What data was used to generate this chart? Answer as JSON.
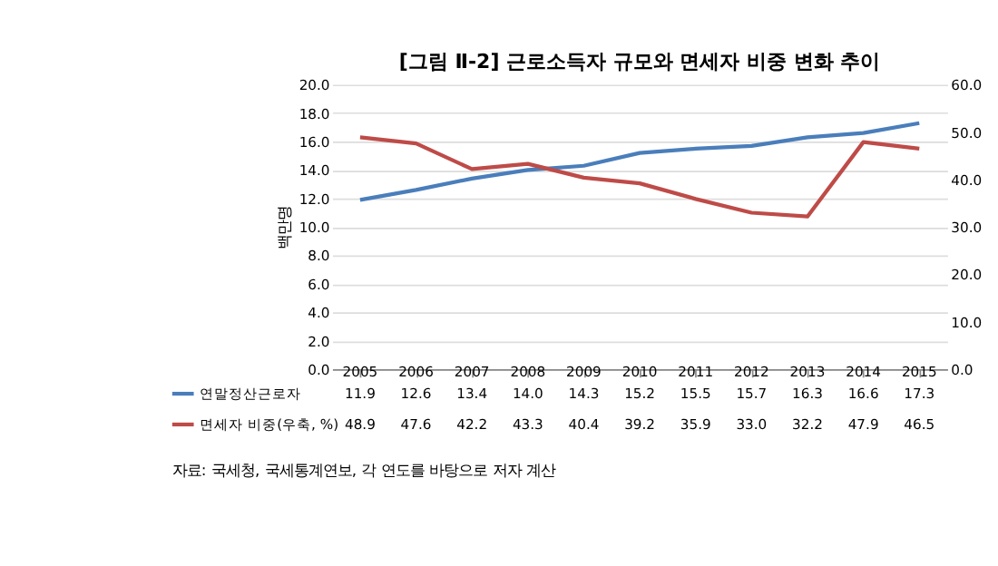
{
  "chart_data": {
    "type": "line",
    "title": "[그림 Ⅱ-2] 근로소득자 규모와 면세자 비중 변화 추이",
    "ylabel": "백만명",
    "categories": [
      "2005",
      "2006",
      "2007",
      "2008",
      "2009",
      "2010",
      "2011",
      "2012",
      "2013",
      "2014",
      "2015"
    ],
    "series": [
      {
        "name": "연말정산근로자",
        "color": "#4a7ebb",
        "values": [
          11.9,
          12.6,
          13.4,
          14.0,
          14.3,
          15.2,
          15.5,
          15.7,
          16.3,
          16.6,
          17.3
        ],
        "value_labels": [
          "11.9",
          "12.6",
          "13.4",
          "14.0",
          "14.3",
          "15.2",
          "15.5",
          "15.7",
          "16.3",
          "16.6",
          "17.3"
        ]
      },
      {
        "name": "면세자 비중(우축, %)",
        "color": "#be4b48",
        "axis": "y2",
        "values": [
          48.9,
          47.6,
          42.2,
          43.3,
          40.4,
          39.2,
          35.9,
          33.0,
          32.2,
          47.9,
          46.5
        ],
        "value_labels": [
          "48.9",
          "47.6",
          "42.2",
          "43.3",
          "40.4",
          "39.2",
          "35.9",
          "33.0",
          "32.2",
          "47.9",
          "46.5"
        ]
      }
    ],
    "ylim": [
      0,
      20
    ],
    "yticks": [
      {
        "value": 0,
        "label": "0.0"
      },
      {
        "value": 2,
        "label": "2.0"
      },
      {
        "value": 4,
        "label": "4.0"
      },
      {
        "value": 6,
        "label": "6.0"
      },
      {
        "value": 8,
        "label": "8.0"
      },
      {
        "value": 10,
        "label": "10.0"
      },
      {
        "value": 12,
        "label": "12.0"
      },
      {
        "value": 14,
        "label": "14.0"
      },
      {
        "value": 16,
        "label": "16.0"
      },
      {
        "value": 18,
        "label": "18.0"
      },
      {
        "value": 20,
        "label": "20.0"
      }
    ],
    "y2lim": [
      0,
      60
    ],
    "y2ticks": [
      {
        "value": 0,
        "label": "0.0"
      },
      {
        "value": 10,
        "label": "10.0"
      },
      {
        "value": 20,
        "label": "20.0"
      },
      {
        "value": 30,
        "label": "30.0"
      },
      {
        "value": 40,
        "label": "40.0"
      },
      {
        "value": 50,
        "label": "50.0"
      },
      {
        "value": 60,
        "label": "60.0"
      }
    ],
    "grid": "y",
    "legend": "bottom",
    "marker": "none",
    "line_style": "solid",
    "annotations": [
      "자료: 국세청, 국세통계연보, 각 연도를 바탕으로 저자 계산"
    ]
  }
}
